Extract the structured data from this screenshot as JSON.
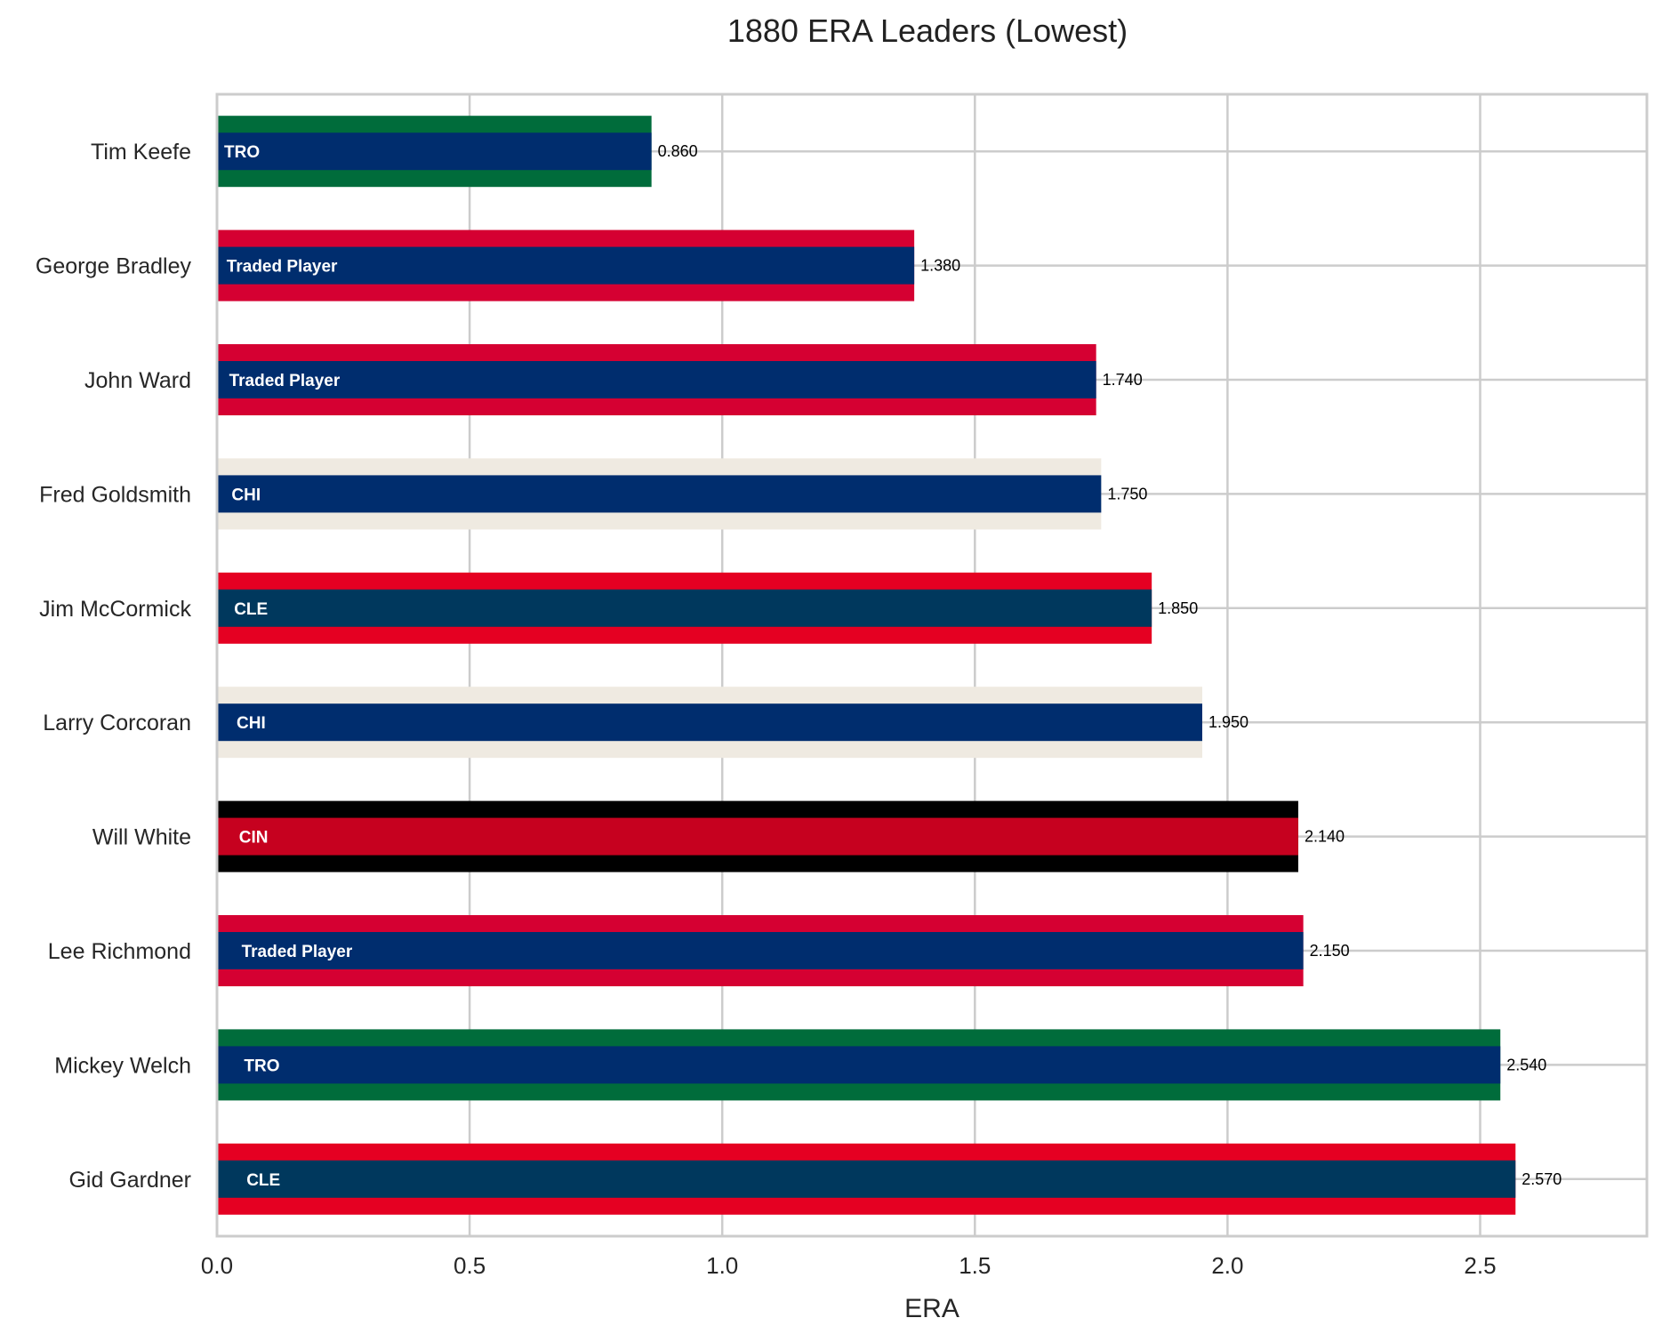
{
  "chart_data": {
    "type": "bar",
    "orientation": "horizontal",
    "title": "1880 ERA Leaders (Lowest)",
    "xlabel": "ERA",
    "ylabel": "",
    "xlim": [
      0,
      2.83
    ],
    "xticks": [
      "0.0",
      "0.5",
      "1.0",
      "1.5",
      "2.0",
      "2.5"
    ],
    "grid": true,
    "categories": [
      "Tim Keefe",
      "George Bradley",
      "John Ward",
      "Fred Goldsmith",
      "Jim McCormick",
      "Larry Corcoran",
      "Will White",
      "Lee Richmond",
      "Mickey Welch",
      "Gid Gardner"
    ],
    "values": [
      0.86,
      1.38,
      1.74,
      1.75,
      1.85,
      1.95,
      2.14,
      2.15,
      2.54,
      2.57
    ],
    "value_labels": [
      "0.860",
      "1.380",
      "1.740",
      "1.750",
      "1.850",
      "1.950",
      "2.140",
      "2.150",
      "2.540",
      "2.570"
    ],
    "team_labels": [
      "TRO",
      "Traded Player",
      "Traded Player",
      "CHI",
      "CLE",
      "CHI",
      "CIN",
      "Traded Player",
      "TRO",
      "CLE"
    ],
    "outer_colors": [
      "#006C3B",
      "#D50032",
      "#D50032",
      "#EFEAE1",
      "#E50022",
      "#EFEAE1",
      "#000000",
      "#D50032",
      "#006C3B",
      "#E50022"
    ],
    "inner_colors": [
      "#002D6E",
      "#002D6E",
      "#002D6E",
      "#002D6E",
      "#00385D",
      "#002D6E",
      "#C6011F",
      "#002D6E",
      "#002D6E",
      "#00385D"
    ]
  }
}
